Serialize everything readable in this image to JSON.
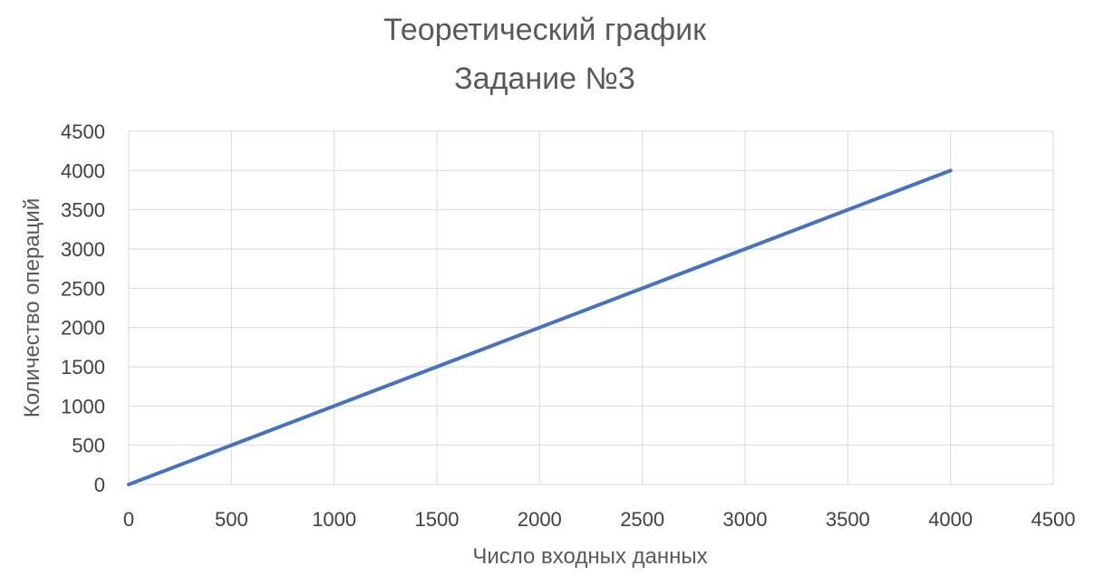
{
  "chart_data": {
    "type": "line",
    "title": "Теоретический график",
    "subtitle": "Задание №3",
    "xlabel": "Число входных данных",
    "ylabel": "Количество операций",
    "xlim": [
      0,
      4500
    ],
    "ylim": [
      0,
      4500
    ],
    "x_ticks": [
      "0",
      "500",
      "1000",
      "1500",
      "2000",
      "2500",
      "3000",
      "3500",
      "4000",
      "4500"
    ],
    "y_ticks": [
      "0",
      "500",
      "1000",
      "1500",
      "2000",
      "2500",
      "3000",
      "3500",
      "4000",
      "4500"
    ],
    "grid": true,
    "legend": "none",
    "series": [
      {
        "color": "#4472C4",
        "points": [
          [
            0,
            0
          ],
          [
            4000,
            4000
          ]
        ]
      }
    ],
    "colors": {
      "grid": "#D9D9D9",
      "plot_border": "#D9D9D9"
    }
  }
}
